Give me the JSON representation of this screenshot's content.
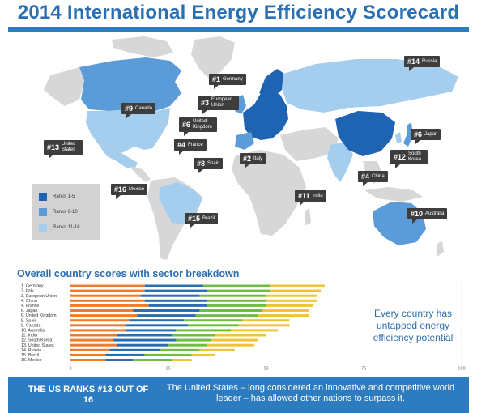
{
  "title": "2014 International Energy Efficiency Scorecard",
  "colors": {
    "accent": "#2d7cc0",
    "rank_1_5": "#1e64b2",
    "rank_6_10": "#5a9bd8",
    "rank_11_16": "#a5cdee",
    "land": "#d7d7d7",
    "label_bg": "#3d3d3d",
    "sector1": "#ee7c2b",
    "sector2": "#2b6fb0",
    "sector3": "#6fbe44",
    "sector4": "#f0c33a"
  },
  "legend": [
    {
      "label": "Ranks 1-5"
    },
    {
      "label": "Ranks 6-10"
    },
    {
      "label": "Ranks 11-16"
    }
  ],
  "map_labels": [
    {
      "rank": "#1",
      "name": "Germany"
    },
    {
      "rank": "#2",
      "name": "Italy"
    },
    {
      "rank": "#3",
      "name": "European Union"
    },
    {
      "rank": "#4",
      "name": "France"
    },
    {
      "rank": "#4",
      "name": "China"
    },
    {
      "rank": "#6",
      "name": "United Kingdom"
    },
    {
      "rank": "#6",
      "name": "Japan"
    },
    {
      "rank": "#8",
      "name": "Spain"
    },
    {
      "rank": "#9",
      "name": "Canada"
    },
    {
      "rank": "#10",
      "name": "Australia"
    },
    {
      "rank": "#11",
      "name": "India"
    },
    {
      "rank": "#12",
      "name": "South Korea"
    },
    {
      "rank": "#13",
      "name": "United States"
    },
    {
      "rank": "#14",
      "name": "Russia"
    },
    {
      "rank": "#15",
      "name": "Brazil"
    },
    {
      "rank": "#16",
      "name": "Mexico"
    }
  ],
  "chart_title": "Overall country scores with sector breakdown",
  "chart_data": {
    "type": "bar",
    "orientation": "horizontal",
    "stacked": true,
    "title": "Overall country scores with sector breakdown",
    "categories": [
      "1. Germany",
      "2. Italy",
      "3. European Union",
      "4. China",
      "4. France",
      "6. Japan",
      "6. United Kingdom",
      "8. Spain",
      "9. Canada",
      "10. Australia",
      "11. India",
      "12. South Korea",
      "13. United States",
      "14. Russia",
      "15. Brazil",
      "16. Mexico"
    ],
    "series": [
      {
        "values": [
          19,
          19,
          18,
          19,
          20,
          16,
          17,
          15,
          14,
          14,
          12,
          11,
          12,
          10,
          9,
          9
        ]
      },
      {
        "values": [
          15,
          16,
          15,
          16,
          15,
          17,
          15,
          14,
          16,
          13,
          14,
          16,
          13,
          13,
          10,
          7
        ]
      },
      {
        "values": [
          17,
          16,
          17,
          15,
          15,
          16,
          16,
          15,
          13,
          14,
          11,
          9,
          10,
          10,
          12,
          10
        ]
      },
      {
        "values": [
          14,
          13,
          13,
          13,
          12,
          12,
          13,
          12,
          13,
          12,
          13,
          12,
          12,
          9,
          6,
          5
        ]
      }
    ],
    "xlim": [
      0,
      100
    ],
    "xticks": [
      "0",
      "25",
      "50",
      "75",
      "100"
    ],
    "grid": true
  },
  "callout": "Every country has untapped energy efficiency potential",
  "footer": {
    "rank_text": "THE US RANKS #13 OUT OF 16",
    "summary": "The United States – long considered an innovative and competitive world leader – has allowed other nations to surpass it."
  }
}
